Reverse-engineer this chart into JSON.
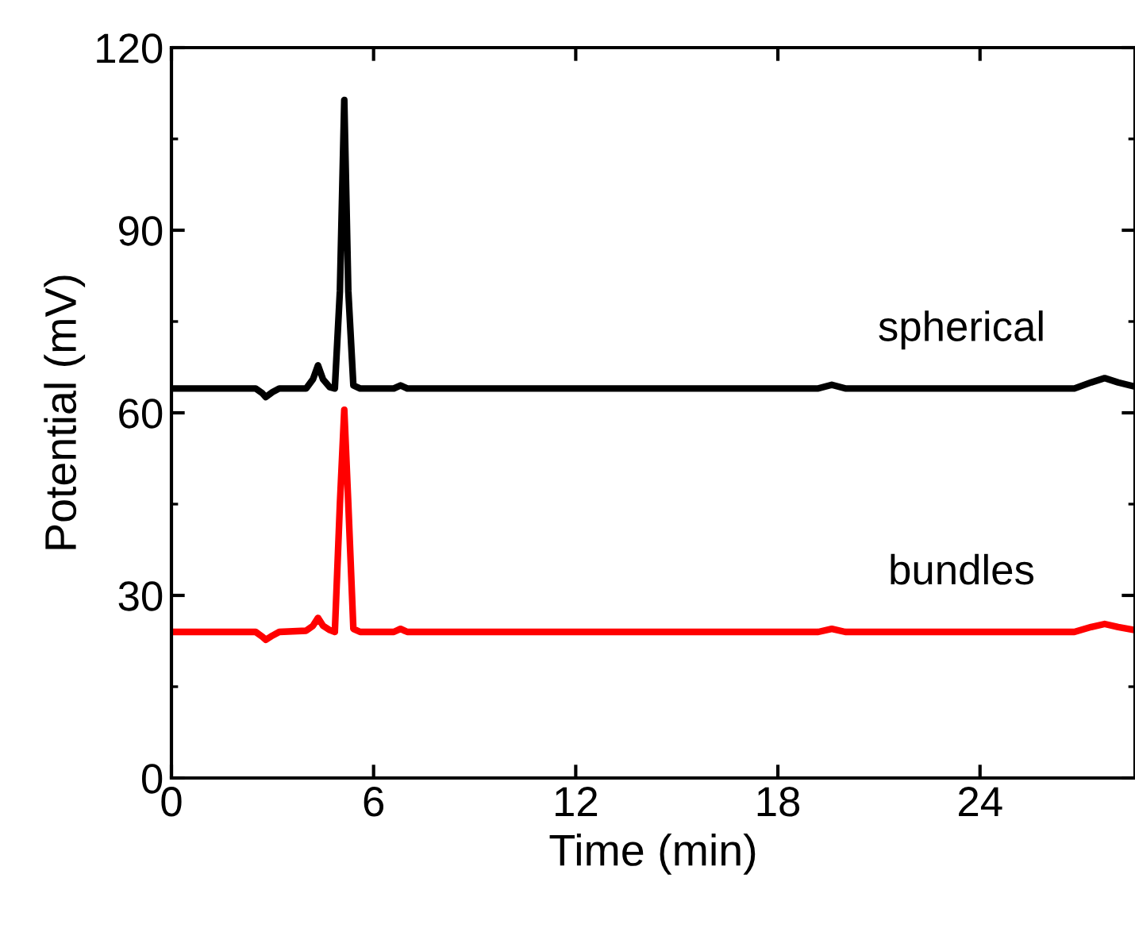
{
  "chart_data": {
    "type": "line",
    "xlabel": "Time (min)",
    "ylabel": "Potential (mV)",
    "xlim": [
      0,
      28.6
    ],
    "xticks": [
      0,
      6,
      12,
      18,
      24
    ],
    "ylim": [
      0,
      120
    ],
    "yticks": [
      0,
      30,
      60,
      90,
      120
    ],
    "annotations": [
      "spherical",
      "bundles"
    ],
    "grid": false,
    "legend": false,
    "marker": "none",
    "line_style": "solid",
    "series": [
      {
        "color": "#000000",
        "x": [
          0,
          2.5,
          2.7,
          2.8,
          3.0,
          3.2,
          4.0,
          4.2,
          4.35,
          4.5,
          4.7,
          4.85,
          5.0,
          5.13,
          5.25,
          5.4,
          5.6,
          6.6,
          6.8,
          7.0,
          19.2,
          19.6,
          20.0,
          26.8,
          27.3,
          27.7,
          28.1,
          28.6
        ],
        "values": [
          64,
          64,
          63.2,
          62.6,
          63.4,
          64,
          64,
          65.5,
          67.8,
          65.5,
          64.2,
          64,
          80,
          111.4,
          80,
          64.5,
          64,
          64,
          64.5,
          64,
          64,
          64.6,
          64,
          64,
          65,
          65.7,
          65,
          64.3
        ]
      },
      {
        "color": "#ff0000",
        "x": [
          0,
          2.5,
          2.7,
          2.8,
          3.0,
          3.2,
          4.0,
          4.2,
          4.35,
          4.5,
          4.7,
          4.85,
          5.0,
          5.13,
          5.25,
          5.4,
          5.6,
          6.6,
          6.8,
          7.0,
          19.2,
          19.6,
          20.0,
          26.8,
          27.3,
          27.7,
          28.1,
          28.6
        ],
        "values": [
          24,
          24,
          23.2,
          22.7,
          23.4,
          24,
          24.2,
          25,
          26.3,
          25,
          24.3,
          24,
          45,
          60.5,
          45,
          24.5,
          24,
          24,
          24.5,
          24,
          24,
          24.5,
          24,
          24,
          24.8,
          25.3,
          24.8,
          24.3
        ]
      }
    ]
  }
}
